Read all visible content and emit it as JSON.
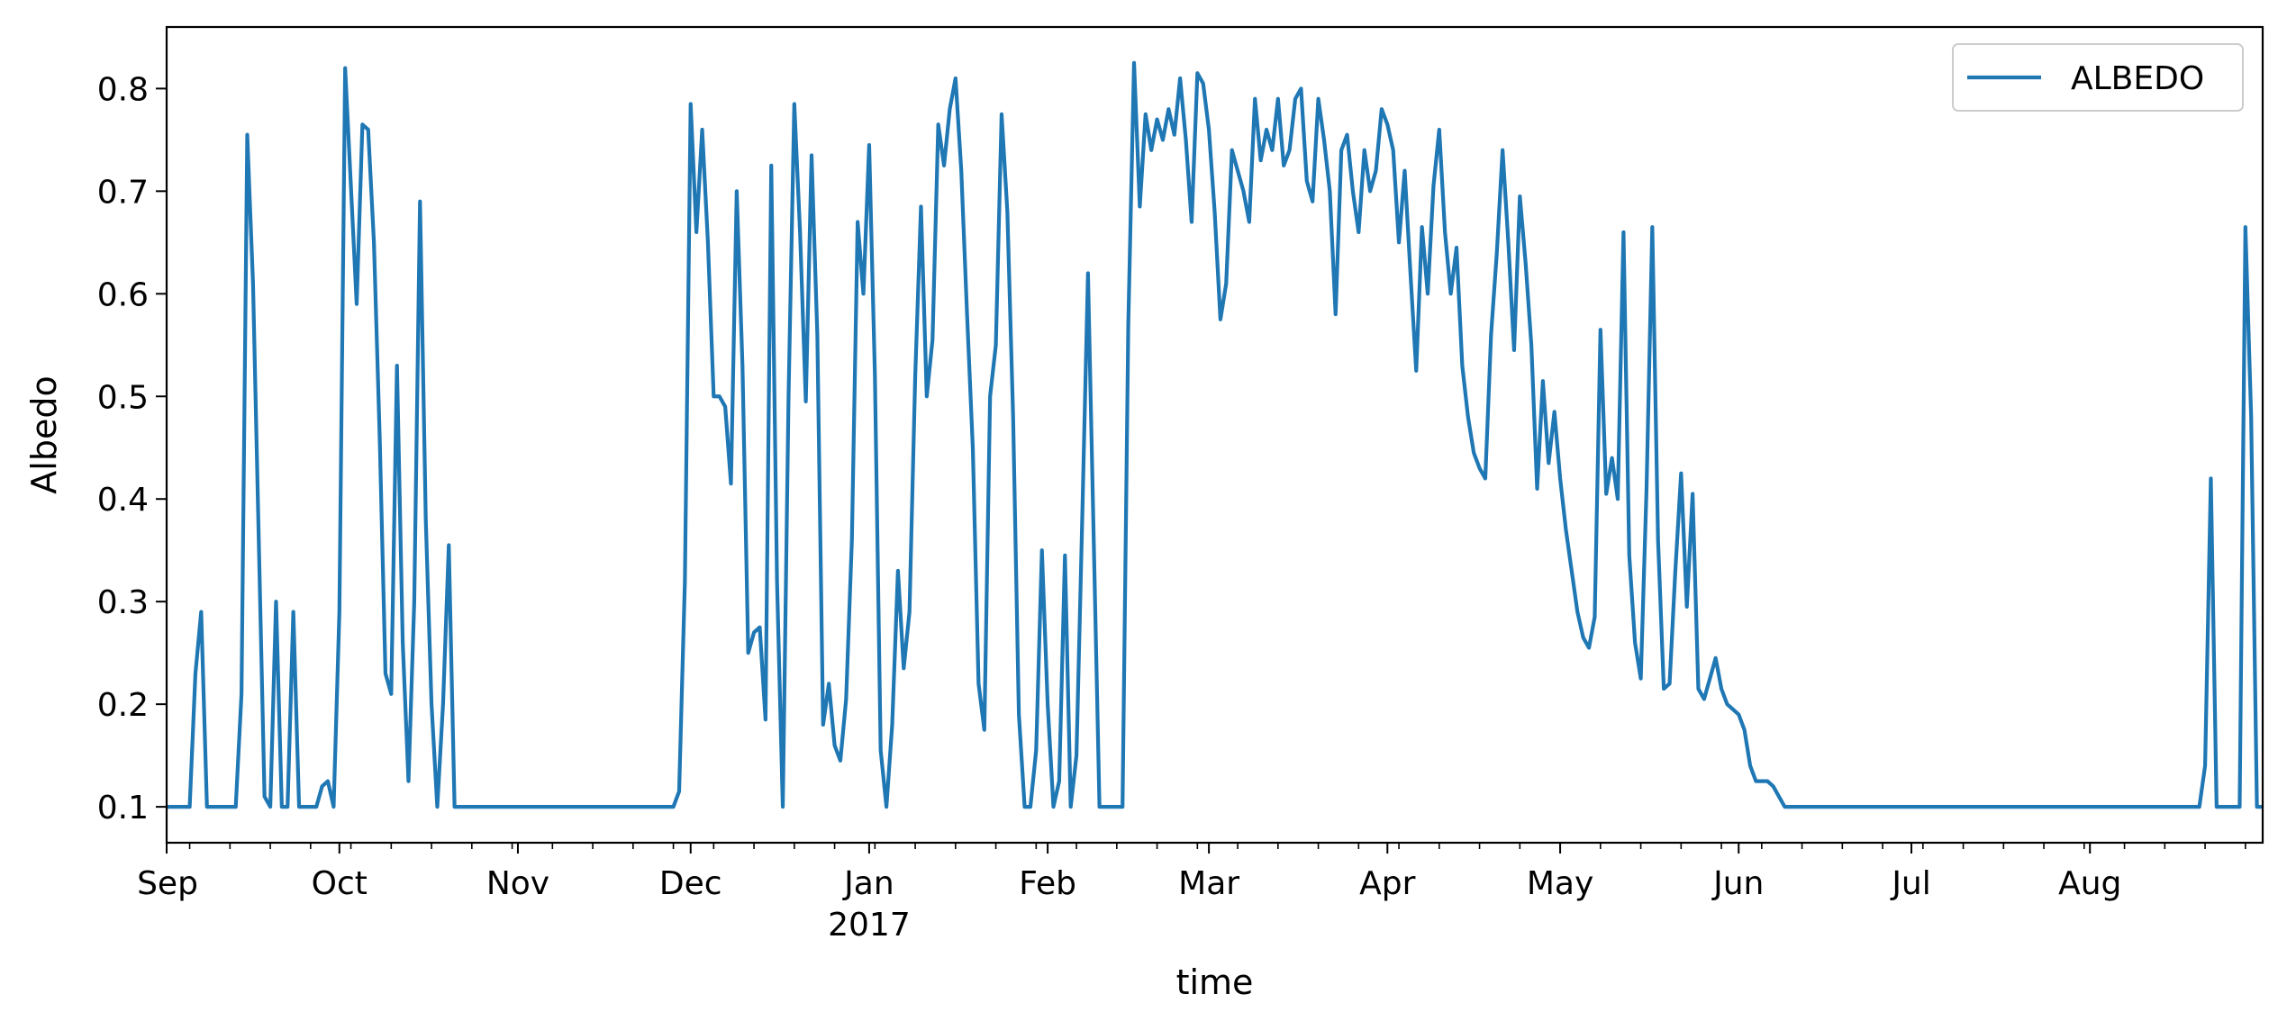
{
  "chart_data": {
    "type": "line",
    "xlabel": "time",
    "ylabel": "Albedo",
    "ylim": [
      0.065,
      0.86
    ],
    "xlim": [
      "2016-09-01",
      "2017-08-31"
    ],
    "grid": false,
    "legend_position": "top-right",
    "line_color": "#1f77b4",
    "yticks": [
      {
        "value": 0.1,
        "label": "0.1"
      },
      {
        "value": 0.2,
        "label": "0.2"
      },
      {
        "value": 0.3,
        "label": "0.3"
      },
      {
        "value": 0.4,
        "label": "0.4"
      },
      {
        "value": 0.5,
        "label": "0.5"
      },
      {
        "value": 0.6,
        "label": "0.6"
      },
      {
        "value": 0.7,
        "label": "0.7"
      },
      {
        "value": 0.8,
        "label": "0.8"
      }
    ],
    "xticks": [
      {
        "date": "2016-09-01",
        "label": "Sep",
        "sublabel": ""
      },
      {
        "date": "2016-10-01",
        "label": "Oct",
        "sublabel": ""
      },
      {
        "date": "2016-11-01",
        "label": "Nov",
        "sublabel": ""
      },
      {
        "date": "2016-12-01",
        "label": "Dec",
        "sublabel": ""
      },
      {
        "date": "2017-01-01",
        "label": "Jan",
        "sublabel": "2017"
      },
      {
        "date": "2017-02-01",
        "label": "Feb",
        "sublabel": ""
      },
      {
        "date": "2017-03-01",
        "label": "Mar",
        "sublabel": ""
      },
      {
        "date": "2017-04-01",
        "label": "Apr",
        "sublabel": ""
      },
      {
        "date": "2017-05-01",
        "label": "May",
        "sublabel": ""
      },
      {
        "date": "2017-06-01",
        "label": "Jun",
        "sublabel": ""
      },
      {
        "date": "2017-07-01",
        "label": "Jul",
        "sublabel": ""
      },
      {
        "date": "2017-08-01",
        "label": "Aug",
        "sublabel": ""
      }
    ],
    "minor_ticks": [
      "2016-09-05",
      "2016-09-12",
      "2016-09-19",
      "2016-09-26",
      "2016-10-03",
      "2016-10-10",
      "2016-10-17",
      "2016-10-24",
      "2016-10-31",
      "2016-11-07",
      "2016-11-14",
      "2016-11-21",
      "2016-11-28",
      "2016-12-05",
      "2016-12-12",
      "2016-12-19",
      "2016-12-26",
      "2017-01-02",
      "2017-01-09",
      "2017-01-16",
      "2017-01-23",
      "2017-01-30",
      "2017-02-06",
      "2017-02-13",
      "2017-02-20",
      "2017-02-27",
      "2017-03-06",
      "2017-03-13",
      "2017-03-20",
      "2017-03-27",
      "2017-04-03",
      "2017-04-10",
      "2017-04-17",
      "2017-04-24",
      "2017-05-01",
      "2017-05-08",
      "2017-05-15",
      "2017-05-22",
      "2017-05-29",
      "2017-06-05",
      "2017-06-12",
      "2017-06-19",
      "2017-06-26",
      "2017-07-03",
      "2017-07-10",
      "2017-07-17",
      "2017-07-24",
      "2017-07-31",
      "2017-08-07",
      "2017-08-14",
      "2017-08-21",
      "2017-08-28"
    ],
    "series": [
      {
        "name": "ALBEDO",
        "points": [
          [
            "2016-09-01",
            0.1
          ],
          [
            "2016-09-05",
            0.1
          ],
          [
            "2016-09-06",
            0.23
          ],
          [
            "2016-09-07",
            0.29
          ],
          [
            "2016-09-08",
            0.1
          ],
          [
            "2016-09-13",
            0.1
          ],
          [
            "2016-09-14",
            0.21
          ],
          [
            "2016-09-15",
            0.755
          ],
          [
            "2016-09-16",
            0.61
          ],
          [
            "2016-09-18",
            0.11
          ],
          [
            "2016-09-19",
            0.1
          ],
          [
            "2016-09-20",
            0.3
          ],
          [
            "2016-09-21",
            0.1
          ],
          [
            "2016-09-22",
            0.1
          ],
          [
            "2016-09-23",
            0.29
          ],
          [
            "2016-09-24",
            0.1
          ],
          [
            "2016-09-27",
            0.1
          ],
          [
            "2016-09-28",
            0.12
          ],
          [
            "2016-09-29",
            0.125
          ],
          [
            "2016-09-30",
            0.1
          ],
          [
            "2016-10-01",
            0.29
          ],
          [
            "2016-10-02",
            0.82
          ],
          [
            "2016-10-04",
            0.59
          ],
          [
            "2016-10-05",
            0.765
          ],
          [
            "2016-10-06",
            0.76
          ],
          [
            "2016-10-07",
            0.65
          ],
          [
            "2016-10-08",
            0.46
          ],
          [
            "2016-10-09",
            0.23
          ],
          [
            "2016-10-10",
            0.21
          ],
          [
            "2016-10-11",
            0.53
          ],
          [
            "2016-10-12",
            0.26
          ],
          [
            "2016-10-13",
            0.125
          ],
          [
            "2016-10-14",
            0.3
          ],
          [
            "2016-10-15",
            0.69
          ],
          [
            "2016-10-16",
            0.38
          ],
          [
            "2016-10-17",
            0.2
          ],
          [
            "2016-10-18",
            0.1
          ],
          [
            "2016-10-19",
            0.2
          ],
          [
            "2016-10-20",
            0.355
          ],
          [
            "2016-10-21",
            0.1
          ],
          [
            "2016-11-28",
            0.1
          ],
          [
            "2016-11-29",
            0.115
          ],
          [
            "2016-11-30",
            0.32
          ],
          [
            "2016-12-01",
            0.785
          ],
          [
            "2016-12-02",
            0.66
          ],
          [
            "2016-12-03",
            0.76
          ],
          [
            "2016-12-04",
            0.65
          ],
          [
            "2016-12-05",
            0.5
          ],
          [
            "2016-12-06",
            0.5
          ],
          [
            "2016-12-07",
            0.49
          ],
          [
            "2016-12-08",
            0.415
          ],
          [
            "2016-12-09",
            0.7
          ],
          [
            "2016-12-10",
            0.53
          ],
          [
            "2016-12-11",
            0.25
          ],
          [
            "2016-12-12",
            0.27
          ],
          [
            "2016-12-13",
            0.275
          ],
          [
            "2016-12-14",
            0.185
          ],
          [
            "2016-12-15",
            0.725
          ],
          [
            "2016-12-16",
            0.32
          ],
          [
            "2016-12-17",
            0.1
          ],
          [
            "2016-12-18",
            0.5
          ],
          [
            "2016-12-19",
            0.785
          ],
          [
            "2016-12-20",
            0.66
          ],
          [
            "2016-12-21",
            0.495
          ],
          [
            "2016-12-22",
            0.735
          ],
          [
            "2016-12-23",
            0.56
          ],
          [
            "2016-12-24",
            0.18
          ],
          [
            "2016-12-25",
            0.22
          ],
          [
            "2016-12-26",
            0.16
          ],
          [
            "2016-12-27",
            0.145
          ],
          [
            "2016-12-28",
            0.205
          ],
          [
            "2016-12-29",
            0.36
          ],
          [
            "2016-12-30",
            0.67
          ],
          [
            "2016-12-31",
            0.6
          ],
          [
            "2017-01-01",
            0.745
          ],
          [
            "2017-01-02",
            0.52
          ],
          [
            "2017-01-03",
            0.155
          ],
          [
            "2017-01-04",
            0.1
          ],
          [
            "2017-01-05",
            0.18
          ],
          [
            "2017-01-06",
            0.33
          ],
          [
            "2017-01-07",
            0.235
          ],
          [
            "2017-01-08",
            0.29
          ],
          [
            "2017-01-09",
            0.52
          ],
          [
            "2017-01-10",
            0.685
          ],
          [
            "2017-01-11",
            0.5
          ],
          [
            "2017-01-12",
            0.555
          ],
          [
            "2017-01-13",
            0.765
          ],
          [
            "2017-01-14",
            0.725
          ],
          [
            "2017-01-15",
            0.78
          ],
          [
            "2017-01-16",
            0.81
          ],
          [
            "2017-01-17",
            0.72
          ],
          [
            "2017-01-18",
            0.58
          ],
          [
            "2017-01-19",
            0.45
          ],
          [
            "2017-01-20",
            0.22
          ],
          [
            "2017-01-21",
            0.175
          ],
          [
            "2017-01-22",
            0.5
          ],
          [
            "2017-01-23",
            0.55
          ],
          [
            "2017-01-24",
            0.775
          ],
          [
            "2017-01-25",
            0.68
          ],
          [
            "2017-01-26",
            0.48
          ],
          [
            "2017-01-27",
            0.19
          ],
          [
            "2017-01-28",
            0.1
          ],
          [
            "2017-01-29",
            0.1
          ],
          [
            "2017-01-30",
            0.155
          ],
          [
            "2017-01-31",
            0.35
          ],
          [
            "2017-02-01",
            0.2
          ],
          [
            "2017-02-02",
            0.1
          ],
          [
            "2017-02-03",
            0.125
          ],
          [
            "2017-02-04",
            0.345
          ],
          [
            "2017-02-05",
            0.1
          ],
          [
            "2017-02-06",
            0.15
          ],
          [
            "2017-02-07",
            0.38
          ],
          [
            "2017-02-08",
            0.62
          ],
          [
            "2017-02-09",
            0.36
          ],
          [
            "2017-02-10",
            0.1
          ],
          [
            "2017-02-14",
            0.1
          ],
          [
            "2017-02-15",
            0.57
          ],
          [
            "2017-02-16",
            0.825
          ],
          [
            "2017-02-17",
            0.685
          ],
          [
            "2017-02-18",
            0.775
          ],
          [
            "2017-02-19",
            0.74
          ],
          [
            "2017-02-20",
            0.77
          ],
          [
            "2017-02-21",
            0.75
          ],
          [
            "2017-02-22",
            0.78
          ],
          [
            "2017-02-23",
            0.755
          ],
          [
            "2017-02-24",
            0.81
          ],
          [
            "2017-02-25",
            0.75
          ],
          [
            "2017-02-26",
            0.67
          ],
          [
            "2017-02-27",
            0.815
          ],
          [
            "2017-02-28",
            0.805
          ],
          [
            "2017-03-01",
            0.76
          ],
          [
            "2017-03-02",
            0.68
          ],
          [
            "2017-03-03",
            0.575
          ],
          [
            "2017-03-04",
            0.61
          ],
          [
            "2017-03-05",
            0.74
          ],
          [
            "2017-03-06",
            0.72
          ],
          [
            "2017-03-07",
            0.7
          ],
          [
            "2017-03-08",
            0.67
          ],
          [
            "2017-03-09",
            0.79
          ],
          [
            "2017-03-10",
            0.73
          ],
          [
            "2017-03-11",
            0.76
          ],
          [
            "2017-03-12",
            0.74
          ],
          [
            "2017-03-13",
            0.79
          ],
          [
            "2017-03-14",
            0.725
          ],
          [
            "2017-03-15",
            0.74
          ],
          [
            "2017-03-16",
            0.79
          ],
          [
            "2017-03-17",
            0.8
          ],
          [
            "2017-03-18",
            0.71
          ],
          [
            "2017-03-19",
            0.69
          ],
          [
            "2017-03-20",
            0.79
          ],
          [
            "2017-03-21",
            0.75
          ],
          [
            "2017-03-22",
            0.7
          ],
          [
            "2017-03-23",
            0.58
          ],
          [
            "2017-03-24",
            0.74
          ],
          [
            "2017-03-25",
            0.755
          ],
          [
            "2017-03-26",
            0.7
          ],
          [
            "2017-03-27",
            0.66
          ],
          [
            "2017-03-28",
            0.74
          ],
          [
            "2017-03-29",
            0.7
          ],
          [
            "2017-03-30",
            0.72
          ],
          [
            "2017-03-31",
            0.78
          ],
          [
            "2017-04-01",
            0.765
          ],
          [
            "2017-04-02",
            0.74
          ],
          [
            "2017-04-03",
            0.65
          ],
          [
            "2017-04-04",
            0.72
          ],
          [
            "2017-04-05",
            0.62
          ],
          [
            "2017-04-06",
            0.525
          ],
          [
            "2017-04-07",
            0.665
          ],
          [
            "2017-04-08",
            0.6
          ],
          [
            "2017-04-09",
            0.705
          ],
          [
            "2017-04-10",
            0.76
          ],
          [
            "2017-04-11",
            0.66
          ],
          [
            "2017-04-12",
            0.6
          ],
          [
            "2017-04-13",
            0.645
          ],
          [
            "2017-04-14",
            0.53
          ],
          [
            "2017-04-15",
            0.48
          ],
          [
            "2017-04-16",
            0.445
          ],
          [
            "2017-04-17",
            0.43
          ],
          [
            "2017-04-18",
            0.42
          ],
          [
            "2017-04-19",
            0.56
          ],
          [
            "2017-04-20",
            0.64
          ],
          [
            "2017-04-21",
            0.74
          ],
          [
            "2017-04-22",
            0.65
          ],
          [
            "2017-04-23",
            0.545
          ],
          [
            "2017-04-24",
            0.695
          ],
          [
            "2017-04-25",
            0.63
          ],
          [
            "2017-04-26",
            0.55
          ],
          [
            "2017-04-27",
            0.41
          ],
          [
            "2017-04-28",
            0.515
          ],
          [
            "2017-04-29",
            0.435
          ],
          [
            "2017-04-30",
            0.485
          ],
          [
            "2017-05-01",
            0.42
          ],
          [
            "2017-05-02",
            0.37
          ],
          [
            "2017-05-03",
            0.33
          ],
          [
            "2017-05-04",
            0.29
          ],
          [
            "2017-05-05",
            0.265
          ],
          [
            "2017-05-06",
            0.255
          ],
          [
            "2017-05-07",
            0.285
          ],
          [
            "2017-05-08",
            0.565
          ],
          [
            "2017-05-09",
            0.405
          ],
          [
            "2017-05-10",
            0.44
          ],
          [
            "2017-05-11",
            0.4
          ],
          [
            "2017-05-12",
            0.66
          ],
          [
            "2017-05-13",
            0.345
          ],
          [
            "2017-05-14",
            0.26
          ],
          [
            "2017-05-15",
            0.225
          ],
          [
            "2017-05-16",
            0.41
          ],
          [
            "2017-05-17",
            0.665
          ],
          [
            "2017-05-18",
            0.36
          ],
          [
            "2017-05-19",
            0.215
          ],
          [
            "2017-05-20",
            0.22
          ],
          [
            "2017-05-21",
            0.33
          ],
          [
            "2017-05-22",
            0.425
          ],
          [
            "2017-05-23",
            0.295
          ],
          [
            "2017-05-24",
            0.405
          ],
          [
            "2017-05-25",
            0.215
          ],
          [
            "2017-05-26",
            0.205
          ],
          [
            "2017-05-27",
            0.225
          ],
          [
            "2017-05-28",
            0.245
          ],
          [
            "2017-05-29",
            0.215
          ],
          [
            "2017-05-30",
            0.2
          ],
          [
            "2017-05-31",
            0.195
          ],
          [
            "2017-06-01",
            0.19
          ],
          [
            "2017-06-02",
            0.175
          ],
          [
            "2017-06-03",
            0.14
          ],
          [
            "2017-06-04",
            0.125
          ],
          [
            "2017-06-06",
            0.125
          ],
          [
            "2017-06-07",
            0.12
          ],
          [
            "2017-06-08",
            0.11
          ],
          [
            "2017-06-09",
            0.1
          ],
          [
            "2017-08-20",
            0.1
          ],
          [
            "2017-08-21",
            0.14
          ],
          [
            "2017-08-22",
            0.42
          ],
          [
            "2017-08-23",
            0.1
          ],
          [
            "2017-08-27",
            0.1
          ],
          [
            "2017-08-28",
            0.665
          ],
          [
            "2017-08-29",
            0.48
          ],
          [
            "2017-08-30",
            0.1
          ],
          [
            "2017-08-31",
            0.1
          ]
        ]
      }
    ]
  }
}
